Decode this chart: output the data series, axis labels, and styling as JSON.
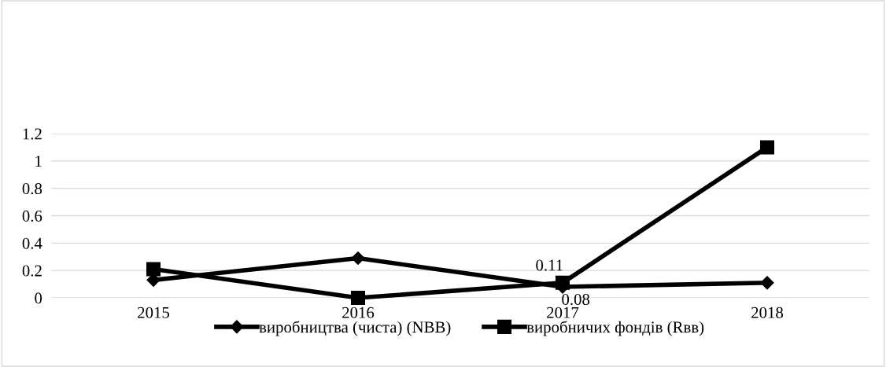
{
  "chart_data": {
    "type": "line",
    "categories": [
      "2015",
      "2016",
      "2017",
      "2018"
    ],
    "series": [
      {
        "name": "виробництва (чиста) (NBB)",
        "color": "#000000",
        "marker": "diamond",
        "values": [
          0.13,
          0.29,
          0.08,
          0.11
        ],
        "value_labels": [
          null,
          null,
          "0.08",
          null
        ]
      },
      {
        "name": "виробничих фондів (Rвв)",
        "color": "#000000",
        "marker": "square",
        "values": [
          0.21,
          0.0,
          0.11,
          1.1
        ],
        "value_labels": [
          null,
          null,
          "0.11",
          null
        ]
      }
    ],
    "ylim": [
      0,
      1.2
    ],
    "yticks": [
      0,
      0.2,
      0.4,
      0.6,
      0.8,
      1,
      1.2
    ],
    "grid": "y",
    "legend": "bottom",
    "line_style": "solid"
  }
}
